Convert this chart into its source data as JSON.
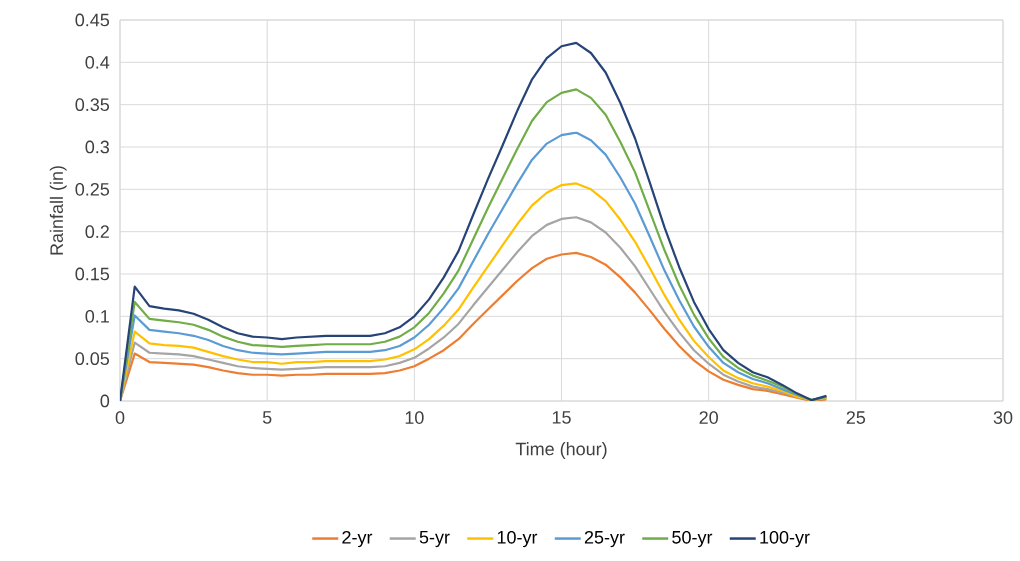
{
  "chart_data": {
    "type": "line",
    "xlabel": "Time (hour)",
    "ylabel": "Rainfall (in)",
    "x": [
      0,
      0.5,
      1,
      1.5,
      2,
      2.5,
      3,
      3.5,
      4,
      4.5,
      5,
      5.5,
      6,
      6.5,
      7,
      7.5,
      8,
      8.5,
      9,
      9.5,
      10,
      10.5,
      11,
      11.5,
      12,
      12.5,
      13,
      13.5,
      14,
      14.5,
      15,
      15.5,
      16,
      16.5,
      17,
      17.5,
      18,
      18.5,
      19,
      19.5,
      20,
      20.5,
      21,
      21.5,
      22,
      22.5,
      23,
      23.5,
      24
    ],
    "series": [
      {
        "name": "2-yr",
        "color": "#ed7d31",
        "values": [
          0,
          0.056,
          0.046,
          0.045,
          0.044,
          0.043,
          0.04,
          0.036,
          0.033,
          0.031,
          0.031,
          0.03,
          0.031,
          0.031,
          0.032,
          0.032,
          0.032,
          0.032,
          0.033,
          0.036,
          0.041,
          0.05,
          0.06,
          0.073,
          0.091,
          0.108,
          0.125,
          0.142,
          0.157,
          0.168,
          0.173,
          0.175,
          0.17,
          0.161,
          0.146,
          0.128,
          0.107,
          0.085,
          0.065,
          0.048,
          0.035,
          0.025,
          0.019,
          0.014,
          0.012,
          0.008,
          0.004,
          0.0,
          0.002
        ]
      },
      {
        "name": "5-yr",
        "color": "#a5a5a5",
        "values": [
          0,
          0.069,
          0.057,
          0.056,
          0.055,
          0.053,
          0.049,
          0.045,
          0.041,
          0.039,
          0.038,
          0.037,
          0.038,
          0.039,
          0.04,
          0.04,
          0.04,
          0.04,
          0.041,
          0.045,
          0.051,
          0.062,
          0.075,
          0.091,
          0.113,
          0.134,
          0.155,
          0.176,
          0.195,
          0.208,
          0.215,
          0.217,
          0.211,
          0.199,
          0.181,
          0.159,
          0.132,
          0.105,
          0.081,
          0.06,
          0.044,
          0.031,
          0.023,
          0.017,
          0.014,
          0.01,
          0.005,
          0.001,
          0.003
        ]
      },
      {
        "name": "10-yr",
        "color": "#ffc000",
        "values": [
          0,
          0.082,
          0.068,
          0.066,
          0.065,
          0.063,
          0.058,
          0.053,
          0.049,
          0.046,
          0.046,
          0.044,
          0.046,
          0.046,
          0.047,
          0.047,
          0.047,
          0.047,
          0.049,
          0.053,
          0.061,
          0.073,
          0.089,
          0.108,
          0.134,
          0.159,
          0.184,
          0.209,
          0.231,
          0.246,
          0.255,
          0.257,
          0.25,
          0.236,
          0.214,
          0.188,
          0.157,
          0.125,
          0.096,
          0.071,
          0.052,
          0.036,
          0.027,
          0.021,
          0.017,
          0.012,
          0.005,
          0.001,
          0.004
        ]
      },
      {
        "name": "25-yr",
        "color": "#5b9bd5",
        "values": [
          0,
          0.101,
          0.084,
          0.082,
          0.08,
          0.077,
          0.072,
          0.065,
          0.06,
          0.057,
          0.056,
          0.055,
          0.056,
          0.057,
          0.058,
          0.058,
          0.058,
          0.058,
          0.06,
          0.065,
          0.075,
          0.09,
          0.11,
          0.133,
          0.165,
          0.197,
          0.227,
          0.257,
          0.285,
          0.304,
          0.314,
          0.317,
          0.308,
          0.291,
          0.264,
          0.233,
          0.194,
          0.154,
          0.119,
          0.088,
          0.064,
          0.045,
          0.034,
          0.026,
          0.021,
          0.014,
          0.007,
          0.001,
          0.005
        ]
      },
      {
        "name": "50-yr",
        "color": "#70ad47",
        "values": [
          0,
          0.117,
          0.097,
          0.095,
          0.093,
          0.09,
          0.084,
          0.076,
          0.07,
          0.066,
          0.065,
          0.064,
          0.065,
          0.066,
          0.067,
          0.067,
          0.067,
          0.067,
          0.07,
          0.076,
          0.087,
          0.104,
          0.127,
          0.154,
          0.191,
          0.228,
          0.263,
          0.298,
          0.331,
          0.353,
          0.364,
          0.368,
          0.358,
          0.338,
          0.306,
          0.27,
          0.224,
          0.178,
          0.137,
          0.102,
          0.074,
          0.052,
          0.039,
          0.03,
          0.024,
          0.017,
          0.008,
          0.001,
          0.005
        ]
      },
      {
        "name": "100-yr",
        "color": "#264478",
        "values": [
          0,
          0.135,
          0.112,
          0.109,
          0.107,
          0.103,
          0.096,
          0.087,
          0.08,
          0.076,
          0.075,
          0.073,
          0.075,
          0.076,
          0.077,
          0.077,
          0.077,
          0.077,
          0.08,
          0.087,
          0.1,
          0.12,
          0.146,
          0.177,
          0.22,
          0.262,
          0.302,
          0.343,
          0.38,
          0.405,
          0.419,
          0.423,
          0.411,
          0.388,
          0.352,
          0.31,
          0.258,
          0.205,
          0.158,
          0.117,
          0.085,
          0.06,
          0.045,
          0.034,
          0.028,
          0.019,
          0.009,
          0.001,
          0.006
        ]
      }
    ],
    "xlim": [
      0,
      30
    ],
    "xticks": [
      0,
      5,
      10,
      15,
      20,
      25,
      30
    ],
    "ylim": [
      0,
      0.45
    ],
    "yticks": [
      0,
      0.05,
      0.1,
      0.15,
      0.2,
      0.25,
      0.3,
      0.35,
      0.4,
      0.45
    ],
    "grid": true,
    "legend": "bottom",
    "marker": "none",
    "line_style": "solid"
  }
}
